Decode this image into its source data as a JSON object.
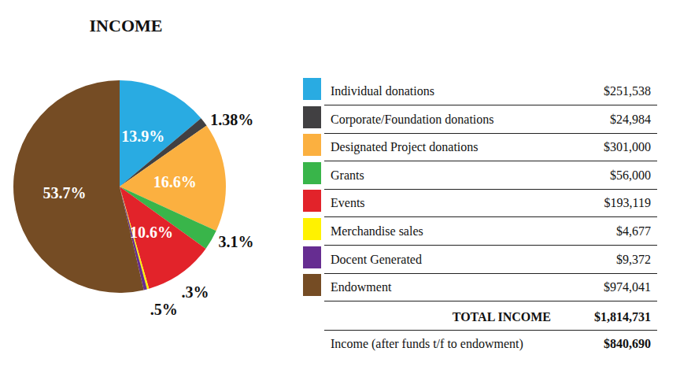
{
  "chart_data": {
    "type": "pie",
    "title": "INCOME",
    "categories": [
      "Individual donations",
      "Corporate/Foundation donations",
      "Designated Project donations",
      "Grants",
      "Events",
      "Merchandise sales",
      "Docent Generated",
      "Endowment"
    ],
    "values": [
      13.9,
      1.38,
      16.6,
      3.1,
      10.6,
      0.3,
      0.5,
      53.7
    ],
    "value_labels": [
      "13.9%",
      "1.38%",
      "16.6%",
      "3.1%",
      "10.6%",
      ".3%",
      ".5%",
      "53.7%"
    ],
    "colors": [
      "#29abe2",
      "#414042",
      "#fbb040",
      "#39b54a",
      "#e2232a",
      "#fff200",
      "#662d91",
      "#754c24"
    ],
    "amounts": [
      "$251,538",
      "$24,984",
      "$301,000",
      "$56,000",
      "$193,119",
      "$4,677",
      "$9,372",
      "$974,041"
    ],
    "totals": [
      {
        "label": "TOTAL INCOME",
        "amount": "$1,814,731"
      },
      {
        "label": "Income (after funds t/f to endowment)",
        "amount": "$840,690"
      }
    ],
    "data_labels": true,
    "legend": "right"
  }
}
